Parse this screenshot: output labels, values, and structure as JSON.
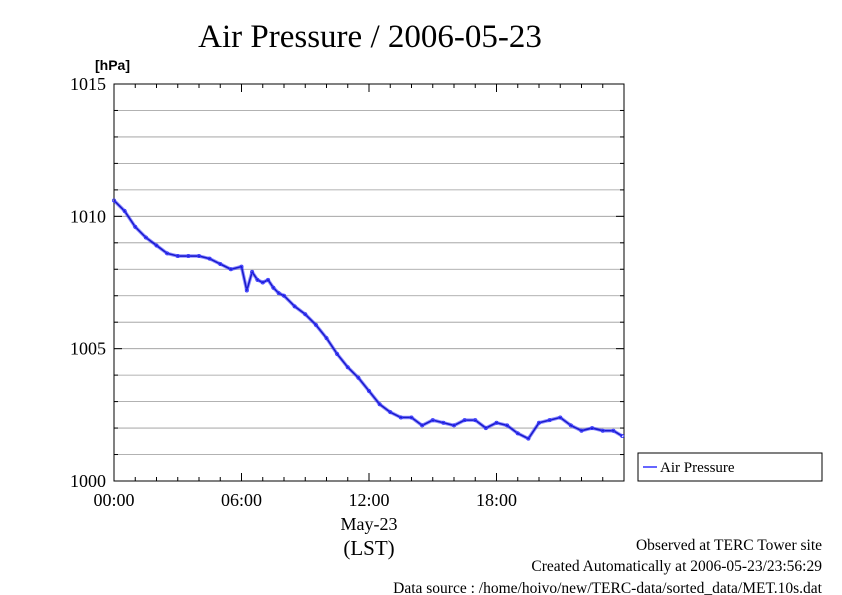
{
  "chart_data": {
    "type": "line",
    "title": "Air Pressure / 2006-05-23",
    "y_unit": "[hPa]",
    "ylim": [
      1000,
      1015
    ],
    "xlim": [
      "00:00",
      "24:00"
    ],
    "x_ticks": [
      "00:00",
      "06:00",
      "12:00",
      "18:00"
    ],
    "y_ticks": [
      "1015",
      "1010",
      "1005",
      "1000"
    ],
    "x_date_label": "May-23",
    "x_axis_label": "(LST)",
    "grid": true,
    "legend_position": "right",
    "series": [
      {
        "name": "Air Pressure",
        "color": "#3333ff",
        "x": [
          "00:00",
          "00:30",
          "01:00",
          "01:30",
          "02:00",
          "02:30",
          "03:00",
          "03:30",
          "04:00",
          "04:30",
          "05:00",
          "05:30",
          "06:00",
          "06:15",
          "06:30",
          "06:45",
          "07:00",
          "07:15",
          "07:30",
          "07:45",
          "08:00",
          "08:30",
          "09:00",
          "09:30",
          "10:00",
          "10:30",
          "11:00",
          "11:30",
          "12:00",
          "12:30",
          "13:00",
          "13:30",
          "14:00",
          "14:30",
          "15:00",
          "15:30",
          "16:00",
          "16:30",
          "17:00",
          "17:30",
          "18:00",
          "18:30",
          "19:00",
          "19:30",
          "20:00",
          "20:30",
          "21:00",
          "21:30",
          "22:00",
          "22:30",
          "23:00",
          "23:30",
          "23:55"
        ],
        "values": [
          1010.6,
          1010.2,
          1009.6,
          1009.2,
          1008.9,
          1008.6,
          1008.5,
          1008.5,
          1008.5,
          1008.4,
          1008.2,
          1008.0,
          1008.1,
          1007.2,
          1007.9,
          1007.6,
          1007.5,
          1007.6,
          1007.3,
          1007.1,
          1007.0,
          1006.6,
          1006.3,
          1005.9,
          1005.4,
          1004.8,
          1004.3,
          1003.9,
          1003.4,
          1002.9,
          1002.6,
          1002.4,
          1002.4,
          1002.1,
          1002.3,
          1002.2,
          1002.1,
          1002.3,
          1002.3,
          1002.0,
          1002.2,
          1002.1,
          1001.8,
          1001.6,
          1002.2,
          1002.3,
          1002.4,
          1002.1,
          1001.9,
          1002.0,
          1001.9,
          1001.9,
          1001.7
        ]
      }
    ]
  },
  "footer": {
    "line1": "Observed at TERC Tower site",
    "line2": "Created Automatically at 2006-05-23/23:56:29",
    "line3": "Data source : /home/hoivo/new/TERC-data/sorted_data/MET.10s.dat"
  }
}
